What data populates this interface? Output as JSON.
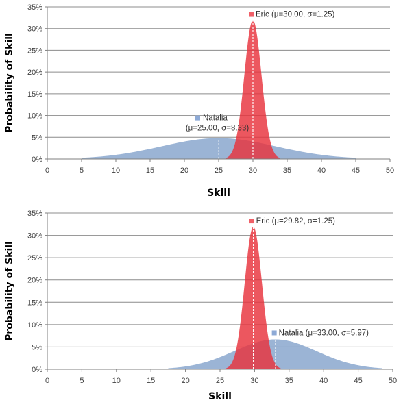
{
  "chart_data": [
    {
      "type": "area",
      "xlabel": "Skill",
      "ylabel": "Probability of Skill",
      "xlim": [
        0,
        50
      ],
      "ylim": [
        0,
        0.35
      ],
      "x_ticks": [
        0,
        5,
        10,
        15,
        20,
        25,
        30,
        35,
        40,
        45,
        50
      ],
      "x_tick_labels": [
        "0",
        "5",
        "10",
        "15",
        "20",
        "25",
        "30",
        "35",
        "40",
        "45",
        "50"
      ],
      "y_ticks": [
        0,
        0.05,
        0.1,
        0.15,
        0.2,
        0.25,
        0.3,
        0.35
      ],
      "y_tick_labels": [
        "0%",
        "5%",
        "10%",
        "15%",
        "20%",
        "25%",
        "30%",
        "35%"
      ],
      "grid": "horizontal",
      "series": [
        {
          "key": "natalia",
          "mu": 25.0,
          "sigma": 8.33,
          "x_range": [
            5,
            45
          ],
          "color": "#7f9fc9",
          "marker_color": "#8eaad6",
          "label_line1": "Natalia",
          "label_line2": "(μ=25.00, σ=8.33)",
          "label_text": ""
        },
        {
          "key": "eric",
          "mu": 30.0,
          "sigma": 1.25,
          "x_range": [
            26,
            34
          ],
          "color": "#e8323c",
          "marker_color": "#f06068",
          "label_line1": "",
          "label_line2": "",
          "label_text": "Eric (μ=30.00, σ=1.25)"
        }
      ]
    },
    {
      "type": "area",
      "xlabel": "Skill",
      "ylabel": "Probability of Skill",
      "xlim": [
        0,
        50
      ],
      "ylim": [
        0,
        0.35
      ],
      "x_ticks": [
        0,
        5,
        10,
        15,
        20,
        25,
        30,
        35,
        40,
        45,
        50
      ],
      "x_tick_labels": [
        "0",
        "5",
        "10",
        "15",
        "20",
        "25",
        "30",
        "35",
        "40",
        "45",
        "50"
      ],
      "y_ticks": [
        0,
        0.05,
        0.1,
        0.15,
        0.2,
        0.25,
        0.3,
        0.35
      ],
      "y_tick_labels": [
        "0%",
        "5%",
        "10%",
        "15%",
        "20%",
        "25%",
        "30%",
        "35%"
      ],
      "grid": "horizontal",
      "series": [
        {
          "key": "natalia",
          "mu": 33.0,
          "sigma": 5.97,
          "x_range": [
            17.5,
            48.5
          ],
          "color": "#7f9fc9",
          "marker_color": "#8eaad6",
          "label_line1": "",
          "label_line2": "",
          "label_text": "Natalia (μ=33.00, σ=5.97)"
        },
        {
          "key": "eric",
          "mu": 29.82,
          "sigma": 1.25,
          "x_range": [
            25.8,
            33.8
          ],
          "color": "#e8323c",
          "marker_color": "#f06068",
          "label_line1": "",
          "label_line2": "",
          "label_text": "Eric (μ=29.82, σ=1.25)"
        }
      ]
    }
  ]
}
